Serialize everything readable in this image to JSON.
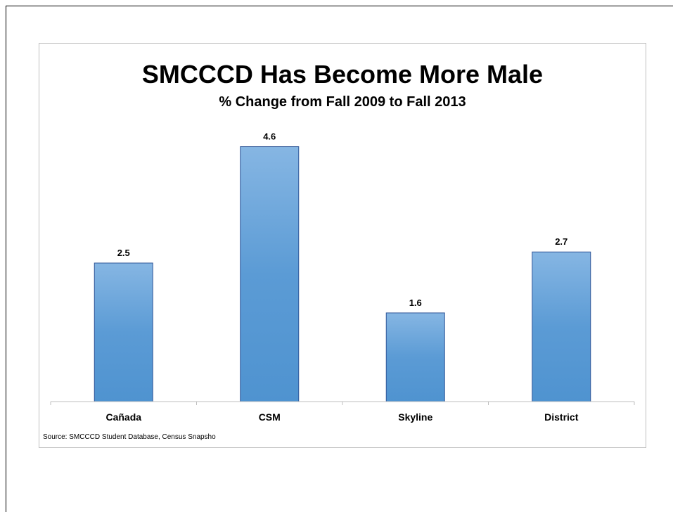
{
  "chart_data": {
    "type": "bar",
    "title": "SMCCCD Has Become More Male",
    "subtitle": "% Change from Fall 2009 to Fall 2013",
    "categories": [
      "Cañada",
      "CSM",
      "Skyline",
      "District"
    ],
    "values": [
      2.5,
      4.6,
      1.6,
      2.7
    ],
    "data_labels": [
      "2.5",
      "4.6",
      "1.6",
      "2.7"
    ],
    "xlabel": "",
    "ylabel": "",
    "ylim": [
      0,
      5.0
    ],
    "grid": false,
    "legend": "none",
    "bar_color": "#5b9bd5",
    "bar_color_light": "#86b6e3",
    "bar_border": "#2f5597",
    "axis_color": "#bfbfbf"
  },
  "source": "Source: SMCCCD Student Database, Census Snapsho"
}
